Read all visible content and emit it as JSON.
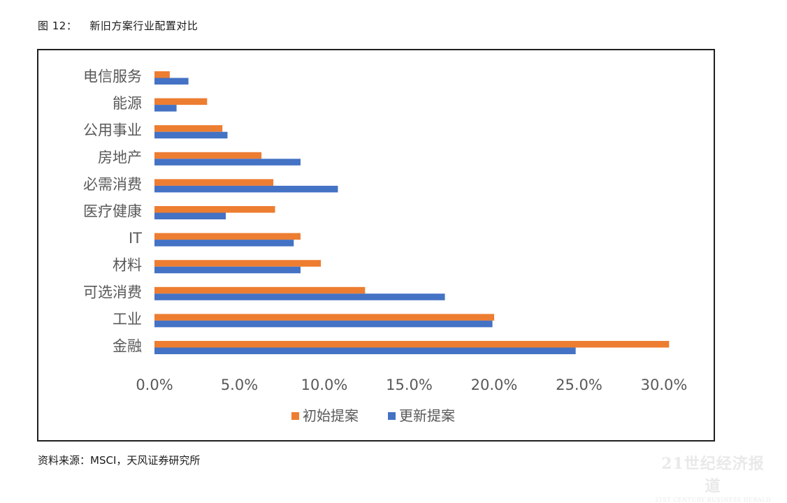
{
  "caption": {
    "figure_no": "图 12：",
    "title": "新旧方案行业配置对比"
  },
  "source": "资料来源：MSCI，天风证券研究所",
  "watermark": {
    "main": "21世纪经济报道",
    "sub": "21ST CENTURY BUSINESS HERALD"
  },
  "chart_data": {
    "type": "bar",
    "orientation": "horizontal",
    "categories": [
      "电信服务",
      "能源",
      "公用事业",
      "房地产",
      "必需消费",
      "医疗健康",
      "IT",
      "材料",
      "可选消费",
      "工业",
      "金融"
    ],
    "series": [
      {
        "name": "初始提案",
        "color": "#ed7d31",
        "values": [
          0.9,
          3.1,
          4.0,
          6.3,
          7.0,
          7.1,
          8.6,
          9.8,
          12.4,
          20.0,
          30.3
        ]
      },
      {
        "name": "更新提案",
        "color": "#4472c4",
        "values": [
          2.0,
          1.3,
          4.3,
          8.6,
          10.8,
          4.2,
          8.2,
          8.6,
          17.1,
          19.9,
          24.8
        ]
      }
    ],
    "xlim": [
      0,
      30
    ],
    "xticks": [
      0,
      5,
      10,
      15,
      20,
      25,
      30
    ],
    "xtick_labels": [
      "0.0%",
      "5.0%",
      "10.0%",
      "15.0%",
      "20.0%",
      "25.0%",
      "30.0%"
    ],
    "grid": false,
    "legend_position": "bottom"
  }
}
